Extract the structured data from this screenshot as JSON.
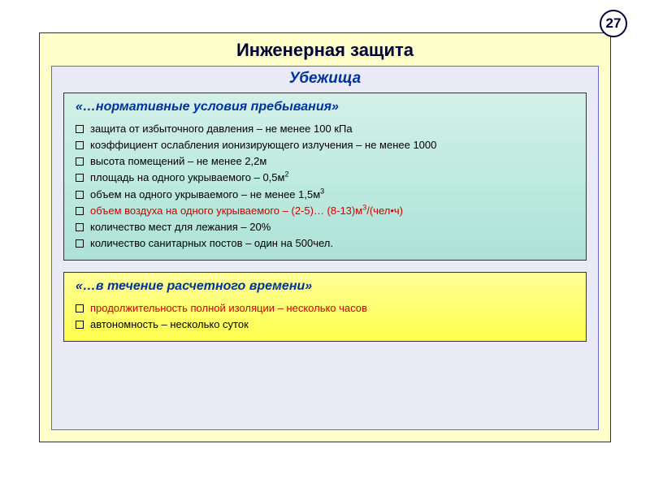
{
  "page_number": "27",
  "main_title": "Инженерная защита",
  "sub_title": "Убежища",
  "box1": {
    "heading": "«…нормативные условия пребывания»",
    "items": [
      {
        "text": "защита от избыточного давления  – не менее 100 кПа",
        "red": false,
        "sup": ""
      },
      {
        "text": "коэффициент ослабления ионизирующего излучения – не менее 1000",
        "red": false,
        "sup": ""
      },
      {
        "text": "высота помещений – не менее 2,2м",
        "red": false,
        "sup": ""
      },
      {
        "text": "площадь на одного укрываемого – 0,5м",
        "red": false,
        "sup": "2"
      },
      {
        "text": "объем на одного укрываемого – не менее 1,5м",
        "red": false,
        "sup": "3"
      },
      {
        "text": "объем воздуха на одного укрываемого – (2-5)… (8-13)м",
        "red": true,
        "sup": "3",
        "tail": "/(чел•ч)"
      },
      {
        "text": "количество мест для лежания – 20%",
        "red": false,
        "sup": ""
      },
      {
        "text": "количество санитарных постов – один на 500чел.",
        "red": false,
        "sup": ""
      }
    ]
  },
  "box2": {
    "heading": "«…в течение расчетного времени»",
    "items": [
      {
        "text": "продолжительность полной изоляции – несколько часов",
        "red": true,
        "sup": ""
      },
      {
        "text": "автономность – несколько суток",
        "red": false,
        "sup": ""
      }
    ]
  },
  "colors": {
    "outer_bg": "#ffffcc",
    "inner_bg": "#eaeaf7",
    "box1_grad_top": "#d4f0e8",
    "box1_grad_bot": "#aee2d7",
    "box2_grad_top": "#ffff99",
    "box2_grad_bot": "#ffff4d",
    "title_color": "#000033",
    "heading_color": "#003399",
    "red_text": "#cc0000"
  }
}
